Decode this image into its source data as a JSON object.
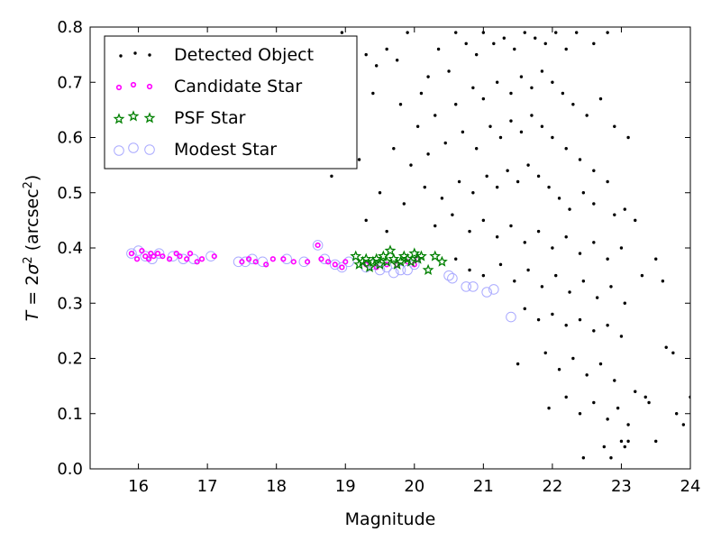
{
  "chart_data": {
    "type": "scatter",
    "xlabel": "Magnitude",
    "ylabel_parts": {
      "var": "T",
      "eq": " = 2",
      "sigma": "σ",
      "sq": "2",
      "unit_open": " (arcsec",
      "unit_close": ")"
    },
    "xlim": [
      15.3,
      24
    ],
    "ylim": [
      0.0,
      0.8
    ],
    "xticks": [
      16,
      17,
      18,
      19,
      20,
      21,
      22,
      23,
      24
    ],
    "yticks": [
      0.0,
      0.1,
      0.2,
      0.3,
      0.4,
      0.5,
      0.6,
      0.7,
      0.8
    ],
    "grid": false,
    "legend_position": "top-left",
    "series": [
      {
        "name": "Detected Object",
        "color": "#000000",
        "marker": "dot",
        "points": [
          [
            18.95,
            0.79
          ],
          [
            19.3,
            0.75
          ],
          [
            19.45,
            0.73
          ],
          [
            19.6,
            0.76
          ],
          [
            19.75,
            0.74
          ],
          [
            19.9,
            0.79
          ],
          [
            20.1,
            0.68
          ],
          [
            20.2,
            0.71
          ],
          [
            20.35,
            0.76
          ],
          [
            20.5,
            0.72
          ],
          [
            20.6,
            0.79
          ],
          [
            20.75,
            0.77
          ],
          [
            20.9,
            0.75
          ],
          [
            21.0,
            0.79
          ],
          [
            21.15,
            0.77
          ],
          [
            21.3,
            0.78
          ],
          [
            21.45,
            0.76
          ],
          [
            21.6,
            0.79
          ],
          [
            21.75,
            0.78
          ],
          [
            21.9,
            0.77
          ],
          [
            22.05,
            0.79
          ],
          [
            22.2,
            0.76
          ],
          [
            22.35,
            0.79
          ],
          [
            22.6,
            0.77
          ],
          [
            22.8,
            0.79
          ],
          [
            19.4,
            0.68
          ],
          [
            19.8,
            0.66
          ],
          [
            20.05,
            0.62
          ],
          [
            20.3,
            0.64
          ],
          [
            20.6,
            0.66
          ],
          [
            20.85,
            0.69
          ],
          [
            21.0,
            0.67
          ],
          [
            21.2,
            0.7
          ],
          [
            21.4,
            0.68
          ],
          [
            21.55,
            0.71
          ],
          [
            21.7,
            0.69
          ],
          [
            21.85,
            0.72
          ],
          [
            22.0,
            0.7
          ],
          [
            22.15,
            0.68
          ],
          [
            22.3,
            0.66
          ],
          [
            22.5,
            0.64
          ],
          [
            22.7,
            0.67
          ],
          [
            22.9,
            0.62
          ],
          [
            23.1,
            0.6
          ],
          [
            19.7,
            0.58
          ],
          [
            19.95,
            0.55
          ],
          [
            20.2,
            0.57
          ],
          [
            20.45,
            0.59
          ],
          [
            20.7,
            0.61
          ],
          [
            20.9,
            0.58
          ],
          [
            21.1,
            0.62
          ],
          [
            21.25,
            0.6
          ],
          [
            21.4,
            0.63
          ],
          [
            21.55,
            0.61
          ],
          [
            21.7,
            0.64
          ],
          [
            21.85,
            0.62
          ],
          [
            22.0,
            0.6
          ],
          [
            22.2,
            0.58
          ],
          [
            22.4,
            0.56
          ],
          [
            22.6,
            0.54
          ],
          [
            22.8,
            0.52
          ],
          [
            18.8,
            0.53
          ],
          [
            19.2,
            0.56
          ],
          [
            19.5,
            0.5
          ],
          [
            19.85,
            0.48
          ],
          [
            20.15,
            0.51
          ],
          [
            20.4,
            0.49
          ],
          [
            20.65,
            0.52
          ],
          [
            20.85,
            0.5
          ],
          [
            21.05,
            0.53
          ],
          [
            21.2,
            0.51
          ],
          [
            21.35,
            0.54
          ],
          [
            21.5,
            0.52
          ],
          [
            21.65,
            0.55
          ],
          [
            21.8,
            0.53
          ],
          [
            21.95,
            0.51
          ],
          [
            22.1,
            0.49
          ],
          [
            22.25,
            0.47
          ],
          [
            22.45,
            0.5
          ],
          [
            22.6,
            0.48
          ],
          [
            22.9,
            0.46
          ],
          [
            23.05,
            0.47
          ],
          [
            23.2,
            0.45
          ],
          [
            19.3,
            0.45
          ],
          [
            19.6,
            0.43
          ],
          [
            20.3,
            0.44
          ],
          [
            20.55,
            0.46
          ],
          [
            20.8,
            0.43
          ],
          [
            21.0,
            0.45
          ],
          [
            21.2,
            0.42
          ],
          [
            21.4,
            0.44
          ],
          [
            21.6,
            0.41
          ],
          [
            21.8,
            0.43
          ],
          [
            22.0,
            0.4
          ],
          [
            22.2,
            0.42
          ],
          [
            22.4,
            0.39
          ],
          [
            22.6,
            0.41
          ],
          [
            22.8,
            0.38
          ],
          [
            23.0,
            0.4
          ],
          [
            23.5,
            0.38
          ],
          [
            20.6,
            0.38
          ],
          [
            20.8,
            0.36
          ],
          [
            21.0,
            0.35
          ],
          [
            21.25,
            0.37
          ],
          [
            21.45,
            0.34
          ],
          [
            21.65,
            0.36
          ],
          [
            21.85,
            0.33
          ],
          [
            22.05,
            0.35
          ],
          [
            22.25,
            0.32
          ],
          [
            22.45,
            0.34
          ],
          [
            22.65,
            0.31
          ],
          [
            22.85,
            0.33
          ],
          [
            23.05,
            0.3
          ],
          [
            23.3,
            0.35
          ],
          [
            23.6,
            0.34
          ],
          [
            21.6,
            0.29
          ],
          [
            21.8,
            0.27
          ],
          [
            22.0,
            0.28
          ],
          [
            22.2,
            0.26
          ],
          [
            22.4,
            0.27
          ],
          [
            22.6,
            0.25
          ],
          [
            22.8,
            0.26
          ],
          [
            23.0,
            0.24
          ],
          [
            21.5,
            0.19
          ],
          [
            21.9,
            0.21
          ],
          [
            22.1,
            0.18
          ],
          [
            22.3,
            0.2
          ],
          [
            22.5,
            0.17
          ],
          [
            22.7,
            0.19
          ],
          [
            22.9,
            0.16
          ],
          [
            23.2,
            0.14
          ],
          [
            23.65,
            0.22
          ],
          [
            23.75,
            0.21
          ],
          [
            21.95,
            0.11
          ],
          [
            22.2,
            0.13
          ],
          [
            22.4,
            0.1
          ],
          [
            22.6,
            0.12
          ],
          [
            22.8,
            0.09
          ],
          [
            22.95,
            0.11
          ],
          [
            23.1,
            0.08
          ],
          [
            23.35,
            0.13
          ],
          [
            23.4,
            0.12
          ],
          [
            24.0,
            0.13
          ],
          [
            22.45,
            0.02
          ],
          [
            22.75,
            0.04
          ],
          [
            22.85,
            0.02
          ],
          [
            23.0,
            0.05
          ],
          [
            23.05,
            0.04
          ],
          [
            23.1,
            0.05
          ],
          [
            23.5,
            0.05
          ],
          [
            23.9,
            0.08
          ],
          [
            23.8,
            0.1
          ]
        ]
      },
      {
        "name": "Candidate Star",
        "color": "#ff00ff",
        "marker": "circle-small",
        "points": [
          [
            15.9,
            0.39
          ],
          [
            15.98,
            0.38
          ],
          [
            16.05,
            0.395
          ],
          [
            16.1,
            0.385
          ],
          [
            16.15,
            0.38
          ],
          [
            16.18,
            0.39
          ],
          [
            16.22,
            0.385
          ],
          [
            16.28,
            0.39
          ],
          [
            16.35,
            0.385
          ],
          [
            16.45,
            0.38
          ],
          [
            16.55,
            0.39
          ],
          [
            16.6,
            0.385
          ],
          [
            16.7,
            0.38
          ],
          [
            16.75,
            0.39
          ],
          [
            16.85,
            0.375
          ],
          [
            16.92,
            0.38
          ],
          [
            17.1,
            0.385
          ],
          [
            17.5,
            0.375
          ],
          [
            17.6,
            0.38
          ],
          [
            17.7,
            0.375
          ],
          [
            17.85,
            0.37
          ],
          [
            17.95,
            0.38
          ],
          [
            18.1,
            0.38
          ],
          [
            18.25,
            0.375
          ],
          [
            18.45,
            0.375
          ],
          [
            18.6,
            0.405
          ],
          [
            18.65,
            0.38
          ],
          [
            18.75,
            0.375
          ],
          [
            18.85,
            0.37
          ],
          [
            18.95,
            0.365
          ],
          [
            19.0,
            0.375
          ],
          [
            19.3,
            0.37
          ],
          [
            19.45,
            0.365
          ],
          [
            19.6,
            0.37
          ],
          [
            19.75,
            0.37
          ],
          [
            19.9,
            0.375
          ],
          [
            20.0,
            0.37
          ],
          [
            20.05,
            0.38
          ]
        ]
      },
      {
        "name": "PSF Star",
        "color": "#008000",
        "marker": "star",
        "points": [
          [
            19.15,
            0.385
          ],
          [
            19.2,
            0.37
          ],
          [
            19.25,
            0.375
          ],
          [
            19.3,
            0.38
          ],
          [
            19.35,
            0.365
          ],
          [
            19.4,
            0.375
          ],
          [
            19.45,
            0.38
          ],
          [
            19.5,
            0.37
          ],
          [
            19.55,
            0.385
          ],
          [
            19.6,
            0.375
          ],
          [
            19.65,
            0.395
          ],
          [
            19.7,
            0.38
          ],
          [
            19.75,
            0.37
          ],
          [
            19.8,
            0.375
          ],
          [
            19.85,
            0.385
          ],
          [
            19.9,
            0.38
          ],
          [
            19.95,
            0.375
          ],
          [
            20.0,
            0.39
          ],
          [
            20.05,
            0.38
          ],
          [
            20.1,
            0.385
          ],
          [
            20.2,
            0.36
          ],
          [
            20.3,
            0.385
          ],
          [
            20.4,
            0.375
          ]
        ]
      },
      {
        "name": "Modest Star",
        "color": "#aaaaff",
        "marker": "circle-large",
        "points": [
          [
            15.9,
            0.39
          ],
          [
            16.0,
            0.395
          ],
          [
            16.1,
            0.385
          ],
          [
            16.2,
            0.38
          ],
          [
            16.3,
            0.39
          ],
          [
            16.5,
            0.385
          ],
          [
            16.65,
            0.38
          ],
          [
            16.8,
            0.38
          ],
          [
            17.05,
            0.385
          ],
          [
            17.45,
            0.375
          ],
          [
            17.55,
            0.375
          ],
          [
            17.65,
            0.38
          ],
          [
            17.8,
            0.375
          ],
          [
            18.15,
            0.38
          ],
          [
            18.4,
            0.375
          ],
          [
            18.6,
            0.405
          ],
          [
            18.7,
            0.38
          ],
          [
            18.85,
            0.37
          ],
          [
            18.95,
            0.365
          ],
          [
            19.05,
            0.375
          ],
          [
            19.3,
            0.365
          ],
          [
            19.4,
            0.37
          ],
          [
            19.5,
            0.36
          ],
          [
            19.6,
            0.365
          ],
          [
            19.7,
            0.355
          ],
          [
            19.8,
            0.36
          ],
          [
            19.9,
            0.36
          ],
          [
            20.0,
            0.37
          ],
          [
            20.5,
            0.35
          ],
          [
            20.55,
            0.345
          ],
          [
            20.75,
            0.33
          ],
          [
            20.85,
            0.33
          ],
          [
            21.05,
            0.32
          ],
          [
            21.15,
            0.325
          ],
          [
            21.4,
            0.275
          ]
        ]
      }
    ]
  }
}
